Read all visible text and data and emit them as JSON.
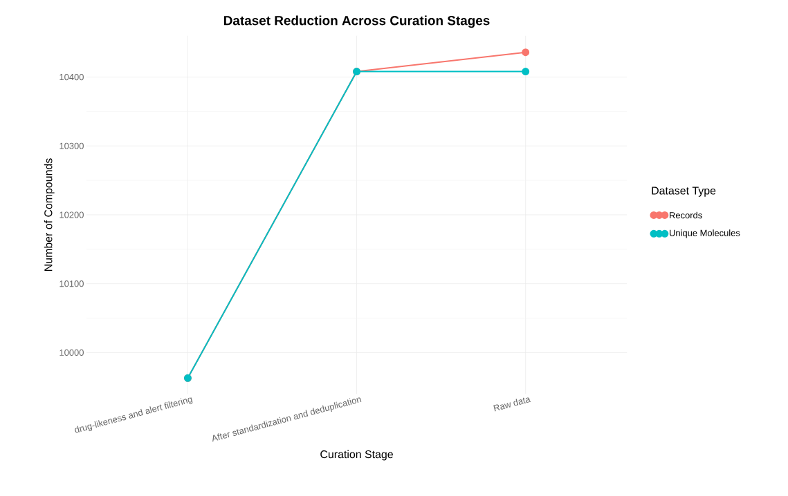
{
  "chart_data": {
    "type": "line",
    "title": "Dataset Reduction Across Curation Stages",
    "xlabel": "Curation Stage",
    "ylabel": "Number of Compounds",
    "legend_title": "Dataset Type",
    "categories": [
      "drug-likeness and alert filtering",
      "After standardization and deduplication",
      "Raw data"
    ],
    "series": [
      {
        "name": "Records",
        "color": "#f8766d",
        "values": [
          9963,
          10408,
          10436
        ]
      },
      {
        "name": "Unique Molecules",
        "color": "#00bfc4",
        "values": [
          9963,
          10408,
          10408
        ]
      }
    ],
    "ylim": [
      9940,
      10460
    ],
    "yticks": [
      10000,
      10100,
      10200,
      10300,
      10400
    ],
    "grid": true,
    "legend": "right",
    "marker": "circle",
    "line_style": "solid"
  }
}
